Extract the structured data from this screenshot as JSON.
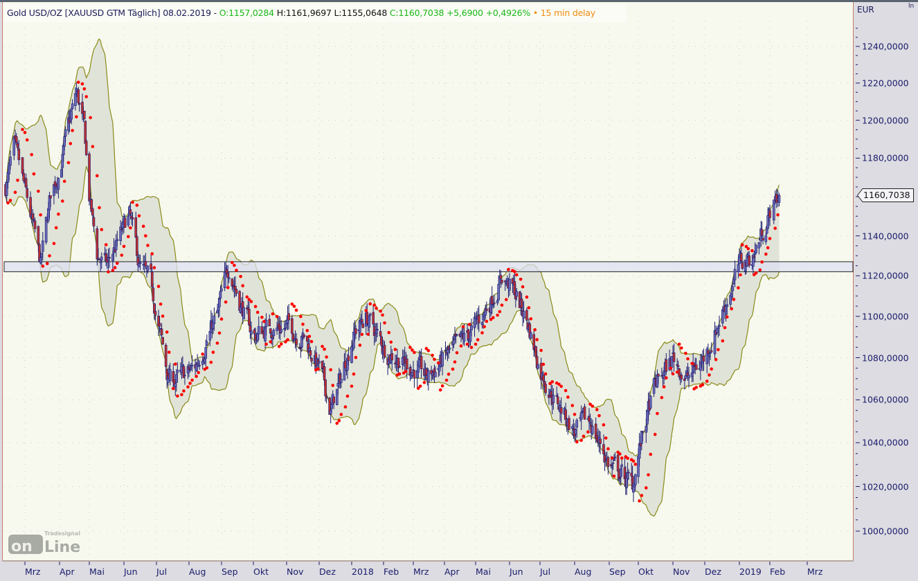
{
  "header": {
    "instrument": "Gold USD/OZ [XAUUSD GTM Täglich]",
    "date": "08.02.2019 -",
    "open": "O:1157,0284",
    "high": "H:1161,9697",
    "low": "L:1155,0648",
    "close": "C:1160,7038",
    "change": "+5,6900",
    "change_pct": "+0,4926%",
    "delay": "• 15 min delay"
  },
  "currency": "EUR",
  "last_price_label": "1160,7038",
  "logo": {
    "top": "Tradesignal",
    "bottom": "onLine"
  },
  "colors": {
    "background": "#f7f9ee",
    "candle": "#1a1a6e",
    "candle_up_body": "#6a6ab8",
    "candle_down_body": "#c03030",
    "sar": "#ff0000",
    "band_fill": "#dcdfd2",
    "band_stroke": "#8a8a18",
    "zone_fill": "#dde0f2",
    "green": "#18b818",
    "orange": "#f08a10"
  },
  "chart_data": {
    "type": "candlestick",
    "title": "Gold USD/OZ [XAUUSD GTM Täglich]",
    "y_scale": "log",
    "ylim": [
      985,
      1262
    ],
    "grid": true,
    "indicators": [
      "Bollinger Bands",
      "Parabolic SAR"
    ],
    "y_ticks": [
      "1240,0000",
      "1220,0000",
      "1200,0000",
      "1180,0000",
      "1160,0000",
      "1140,0000",
      "1120,0000",
      "1100,0000",
      "1080,0000",
      "1060,0000",
      "1040,0000",
      "1020,0000",
      "1000,0000"
    ],
    "y_tick_values": [
      1240,
      1220,
      1200,
      1180,
      1160,
      1140,
      1120,
      1100,
      1080,
      1060,
      1040,
      1020,
      1000
    ],
    "x_ticks": [
      {
        "label": "Mrz",
        "month": "2017-03"
      },
      {
        "label": "Apr",
        "month": "2017-04"
      },
      {
        "label": "Mai",
        "month": "2017-05"
      },
      {
        "label": "Jun",
        "month": "2017-06"
      },
      {
        "label": "Jul",
        "month": "2017-07"
      },
      {
        "label": "Aug",
        "month": "2017-08"
      },
      {
        "label": "Sep",
        "month": "2017-09"
      },
      {
        "label": "Okt",
        "month": "2017-10"
      },
      {
        "label": "Nov",
        "month": "2017-11"
      },
      {
        "label": "Dez",
        "month": "2017-12"
      },
      {
        "label": "2018",
        "month": "2018-01"
      },
      {
        "label": "Feb",
        "month": "2018-02"
      },
      {
        "label": "Mrz",
        "month": "2018-03"
      },
      {
        "label": "Apr",
        "month": "2018-04"
      },
      {
        "label": "Mai",
        "month": "2018-05"
      },
      {
        "label": "Jun",
        "month": "2018-06"
      },
      {
        "label": "Jul",
        "month": "2018-07"
      },
      {
        "label": "Aug",
        "month": "2018-08"
      },
      {
        "label": "Sep",
        "month": "2018-09"
      },
      {
        "label": "Okt",
        "month": "2018-10"
      },
      {
        "label": "Nov",
        "month": "2018-11"
      },
      {
        "label": "Dez",
        "month": "2018-12"
      },
      {
        "label": "2019",
        "month": "2019-01"
      },
      {
        "label": "Feb",
        "month": "2019-02"
      },
      {
        "label": "Mrz",
        "month": "2019-03"
      }
    ],
    "zone": {
      "low": 1122,
      "high": 1127
    },
    "last": {
      "open": 1157.0284,
      "high": 1161.9697,
      "low": 1155.0648,
      "close": 1160.7038
    },
    "close_points": [
      [
        "2017-02-13",
        1165
      ],
      [
        "2017-02-20",
        1185
      ],
      [
        "2017-03-08",
        1145
      ],
      [
        "2017-03-15",
        1125
      ],
      [
        "2017-03-24",
        1160
      ],
      [
        "2017-04-01",
        1175
      ],
      [
        "2017-04-12",
        1200
      ],
      [
        "2017-04-18",
        1215
      ],
      [
        "2017-04-26",
        1195
      ],
      [
        "2017-05-01",
        1160
      ],
      [
        "2017-05-08",
        1130
      ],
      [
        "2017-05-17",
        1125
      ],
      [
        "2017-05-25",
        1135
      ],
      [
        "2017-06-06",
        1150
      ],
      [
        "2017-06-15",
        1125
      ],
      [
        "2017-06-26",
        1115
      ],
      [
        "2017-07-05",
        1090
      ],
      [
        "2017-07-12",
        1070
      ],
      [
        "2017-07-25",
        1070
      ],
      [
        "2017-08-07",
        1075
      ],
      [
        "2017-08-18",
        1090
      ],
      [
        "2017-08-28",
        1100
      ],
      [
        "2017-09-08",
        1125
      ],
      [
        "2017-09-20",
        1105
      ],
      [
        "2017-10-01",
        1090
      ],
      [
        "2017-10-15",
        1095
      ],
      [
        "2017-11-01",
        1095
      ],
      [
        "2017-11-17",
        1090
      ],
      [
        "2017-12-01",
        1075
      ],
      [
        "2017-12-12",
        1055
      ],
      [
        "2017-12-22",
        1070
      ],
      [
        "2018-01-01",
        1090
      ],
      [
        "2018-01-15",
        1100
      ],
      [
        "2018-02-01",
        1085
      ],
      [
        "2018-02-15",
        1080
      ],
      [
        "2018-03-01",
        1075
      ],
      [
        "2018-03-15",
        1070
      ],
      [
        "2018-04-01",
        1080
      ],
      [
        "2018-04-15",
        1085
      ],
      [
        "2018-05-01",
        1095
      ],
      [
        "2018-05-12",
        1105
      ],
      [
        "2018-05-25",
        1120
      ],
      [
        "2018-06-08",
        1110
      ],
      [
        "2018-06-20",
        1095
      ],
      [
        "2018-07-01",
        1075
      ],
      [
        "2018-07-15",
        1060
      ],
      [
        "2018-08-01",
        1045
      ],
      [
        "2018-08-15",
        1050
      ],
      [
        "2018-09-01",
        1030
      ],
      [
        "2018-09-15",
        1025
      ],
      [
        "2018-09-25",
        1020
      ],
      [
        "2018-10-01",
        1035
      ],
      [
        "2018-10-15",
        1065
      ],
      [
        "2018-11-01",
        1080
      ],
      [
        "2018-11-15",
        1070
      ],
      [
        "2018-12-01",
        1080
      ],
      [
        "2018-12-15",
        1100
      ],
      [
        "2019-01-01",
        1125
      ],
      [
        "2019-01-15",
        1130
      ],
      [
        "2019-02-08",
        1160.7038
      ]
    ]
  }
}
